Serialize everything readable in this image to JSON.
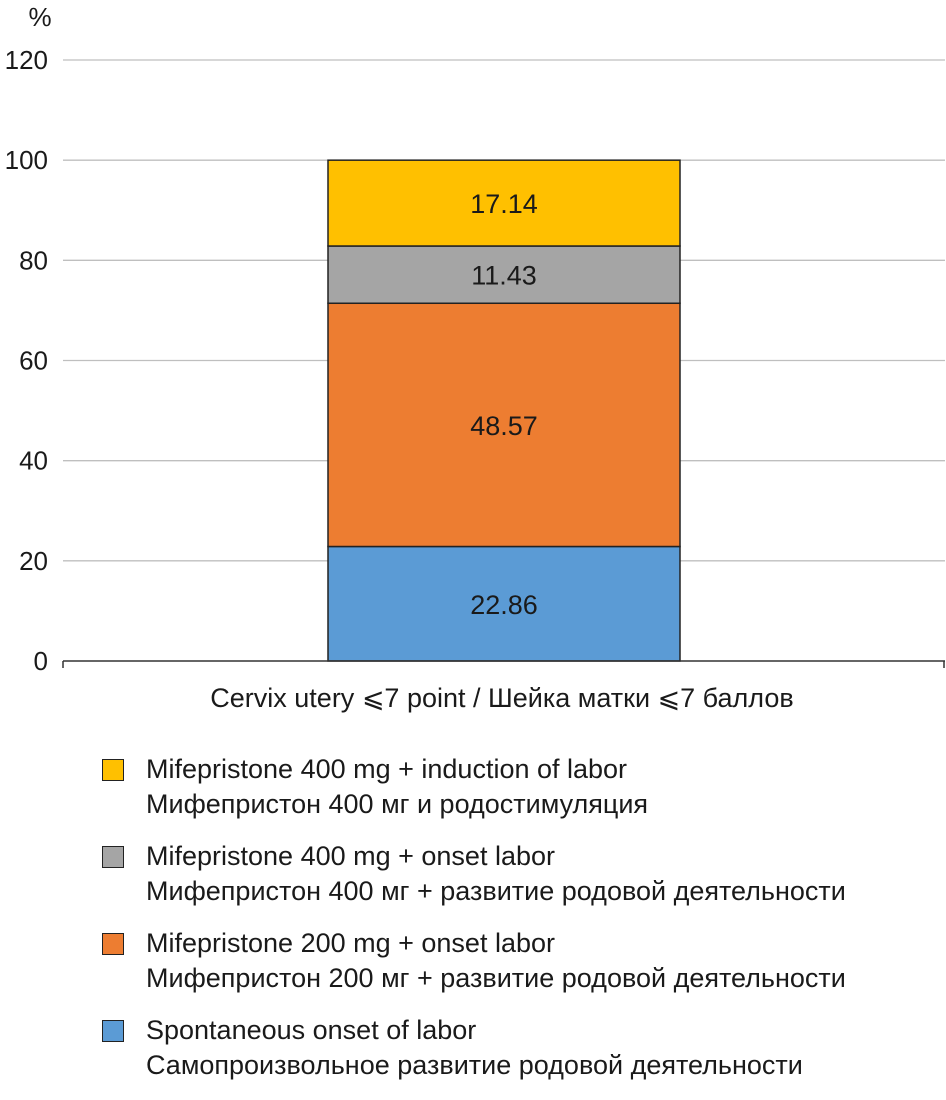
{
  "chart_data": {
    "type": "bar",
    "stacked": true,
    "ylabel": "%",
    "ylim": [
      0,
      120
    ],
    "yticks": [
      0,
      20,
      40,
      60,
      80,
      100,
      120
    ],
    "grid": true,
    "categories": [
      "Cervix utery ⩽7 point / Шейка матки ⩽7 баллов"
    ],
    "series": [
      {
        "name": "Spontaneous onset of labor",
        "name_ru": "Самопроизвольное развитие родовой деятельности",
        "values": [
          22.86
        ],
        "color": "#5b9bd5"
      },
      {
        "name": "Mifepristone 200 mg + onset labor",
        "name_ru": "Мифепристон 200 мг + развитие родовой деятельности",
        "values": [
          48.57
        ],
        "color": "#ed7d31"
      },
      {
        "name": "Mifepristone 400 mg + onset labor",
        "name_ru": "Мифепристон 400 мг + развитие родовой деятельности",
        "values": [
          11.43
        ],
        "color": "#a5a5a5"
      },
      {
        "name": "Mifepristone 400 mg + induction of labor",
        "name_ru": "Мифепристон 400 мг и родостимуляция",
        "values": [
          17.14
        ],
        "color": "#ffc000"
      }
    ],
    "legend_position": "bottom",
    "legend_order": [
      3,
      2,
      1,
      0
    ]
  }
}
